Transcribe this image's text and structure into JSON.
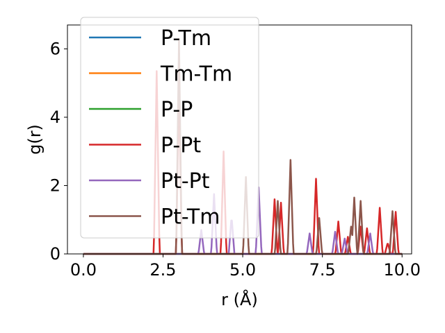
{
  "chart_data": {
    "type": "line",
    "xlabel": "r (Å)",
    "ylabel": "g(r)",
    "xlim": [
      -0.5,
      10.3
    ],
    "ylim": [
      0,
      6.7
    ],
    "x_ticks": [
      0.0,
      2.5,
      5.0,
      7.5,
      10.0
    ],
    "x_tick_labels": [
      "0.0",
      "2.5",
      "5.0",
      "7.5",
      "10.0"
    ],
    "y_ticks": [
      0,
      2,
      4,
      6
    ],
    "y_tick_labels": [
      "0",
      "2",
      "4",
      "6"
    ],
    "grid": false,
    "legend_position": "top-left",
    "series": [
      {
        "name": "P-Tm",
        "color": "#1f77b4",
        "peaks": []
      },
      {
        "name": "Tm-Tm",
        "color": "#ff7f0e",
        "peaks": []
      },
      {
        "name": "P-P",
        "color": "#2ca02c",
        "peaks": []
      },
      {
        "name": "P-Pt",
        "color": "#d62728",
        "peaks": [
          [
            2.3,
            5.35
          ],
          [
            3.0,
            4.9
          ],
          [
            4.4,
            3.0
          ],
          [
            6.0,
            1.6
          ],
          [
            6.2,
            1.5
          ],
          [
            7.3,
            2.2
          ],
          [
            8.0,
            0.95
          ],
          [
            8.3,
            0.5
          ],
          [
            8.7,
            0.8
          ],
          [
            8.9,
            0.75
          ],
          [
            9.3,
            1.35
          ],
          [
            9.55,
            0.33
          ],
          [
            9.8,
            1.23
          ]
        ]
      },
      {
        "name": "Pt-Pt",
        "color": "#9467bd",
        "peaks": [
          [
            3.7,
            0.7
          ],
          [
            4.1,
            1.75
          ],
          [
            4.65,
            1.1
          ],
          [
            5.5,
            1.95
          ],
          [
            7.1,
            0.6
          ],
          [
            7.9,
            0.65
          ],
          [
            8.2,
            0.45
          ],
          [
            9.0,
            0.6
          ]
        ]
      },
      {
        "name": "Pt-Tm",
        "color": "#8c564b",
        "peaks": [
          [
            3.0,
            6.3
          ],
          [
            5.1,
            2.25
          ],
          [
            6.1,
            1.55
          ],
          [
            6.5,
            2.75
          ],
          [
            7.4,
            1.05
          ],
          [
            8.5,
            1.65
          ],
          [
            8.4,
            0.8
          ],
          [
            8.7,
            1.55
          ],
          [
            9.7,
            1.25
          ]
        ]
      }
    ]
  }
}
